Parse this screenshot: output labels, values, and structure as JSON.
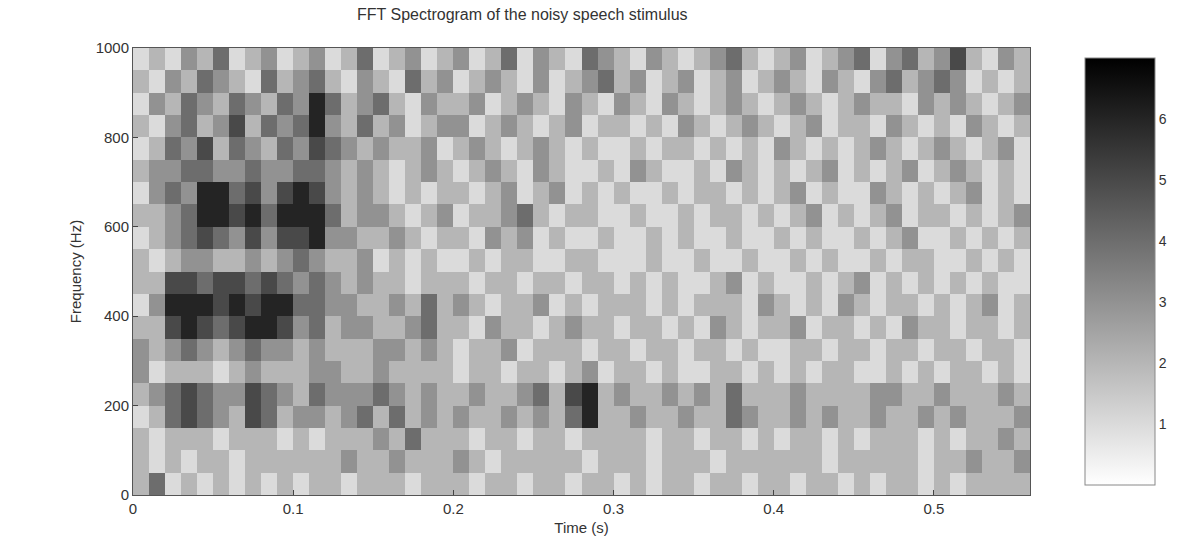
{
  "chart_data": {
    "type": "heatmap",
    "title": "FFT Spectrogram of the noisy speech stimulus",
    "x_label": "Time (s)",
    "y_label": "Frequency (Hz)",
    "x": [
      0.005,
      0.015,
      0.025,
      0.035,
      0.045,
      0.055,
      0.065,
      0.075,
      0.085,
      0.095,
      0.105,
      0.115,
      0.125,
      0.135,
      0.145,
      0.155,
      0.165,
      0.175,
      0.185,
      0.195,
      0.205,
      0.215,
      0.225,
      0.235,
      0.245,
      0.255,
      0.265,
      0.275,
      0.285,
      0.295,
      0.305,
      0.315,
      0.325,
      0.335,
      0.345,
      0.355,
      0.365,
      0.375,
      0.385,
      0.395,
      0.405,
      0.415,
      0.425,
      0.435,
      0.445,
      0.455,
      0.465,
      0.475,
      0.485,
      0.495,
      0.505,
      0.515,
      0.525,
      0.535,
      0.545,
      0.555
    ],
    "y": [
      25,
      75,
      125,
      175,
      225,
      275,
      325,
      375,
      425,
      475,
      525,
      575,
      625,
      675,
      725,
      775,
      825,
      875,
      925,
      975
    ],
    "cells": [
      [
        2,
        4,
        1,
        2,
        1,
        2,
        1,
        2,
        1,
        2,
        1,
        2,
        2,
        1,
        2,
        2,
        2,
        1,
        2,
        2,
        2,
        1,
        2,
        2,
        1,
        2,
        2,
        1,
        2,
        2,
        1,
        2,
        1,
        2,
        2,
        1,
        2,
        2,
        1,
        2,
        2,
        1,
        2,
        2,
        1,
        2,
        1,
        2,
        2,
        1,
        2,
        1,
        2,
        2,
        2,
        2
      ],
      [
        2,
        1,
        2,
        1,
        2,
        2,
        1,
        2,
        2,
        2,
        2,
        2,
        2,
        3,
        2,
        2,
        3,
        2,
        2,
        2,
        3,
        2,
        1,
        2,
        2,
        2,
        2,
        2,
        1,
        2,
        2,
        2,
        1,
        2,
        2,
        2,
        1,
        2,
        2,
        2,
        2,
        2,
        2,
        1,
        2,
        2,
        2,
        2,
        2,
        1,
        2,
        2,
        3,
        2,
        2,
        3
      ],
      [
        2,
        1,
        2,
        2,
        2,
        1,
        2,
        2,
        2,
        1,
        2,
        1,
        2,
        2,
        2,
        3,
        2,
        4,
        2,
        2,
        2,
        1,
        2,
        2,
        1,
        2,
        2,
        1,
        2,
        2,
        2,
        2,
        1,
        2,
        2,
        1,
        2,
        2,
        1,
        2,
        1,
        2,
        2,
        1,
        2,
        1,
        2,
        2,
        2,
        1,
        2,
        1,
        2,
        2,
        3,
        2
      ],
      [
        1,
        2,
        4,
        5,
        4,
        3,
        2,
        5,
        4,
        2,
        3,
        3,
        2,
        3,
        4,
        2,
        4,
        2,
        3,
        2,
        3,
        2,
        2,
        3,
        2,
        3,
        2,
        4,
        6,
        2,
        2,
        3,
        2,
        2,
        3,
        2,
        2,
        4,
        3,
        2,
        2,
        3,
        2,
        3,
        2,
        2,
        3,
        2,
        2,
        3,
        2,
        3,
        2,
        2,
        2,
        3
      ],
      [
        2,
        3,
        4,
        5,
        4,
        3,
        3,
        5,
        4,
        3,
        2,
        4,
        3,
        3,
        3,
        4,
        3,
        2,
        3,
        2,
        2,
        3,
        2,
        2,
        3,
        4,
        2,
        5,
        6,
        2,
        3,
        2,
        2,
        3,
        2,
        3,
        2,
        4,
        2,
        2,
        2,
        3,
        2,
        2,
        2,
        2,
        3,
        3,
        2,
        2,
        3,
        2,
        2,
        2,
        3,
        2
      ],
      [
        3,
        1,
        2,
        2,
        2,
        1,
        2,
        3,
        2,
        2,
        2,
        3,
        3,
        2,
        2,
        3,
        2,
        2,
        2,
        2,
        1,
        2,
        2,
        1,
        2,
        2,
        1,
        2,
        3,
        1,
        2,
        2,
        1,
        2,
        1,
        1,
        2,
        2,
        1,
        2,
        1,
        2,
        1,
        2,
        2,
        1,
        1,
        2,
        1,
        2,
        1,
        2,
        2,
        1,
        2,
        1
      ],
      [
        3,
        2,
        3,
        4,
        3,
        2,
        3,
        4,
        3,
        3,
        2,
        3,
        2,
        2,
        2,
        3,
        3,
        2,
        3,
        2,
        1,
        2,
        2,
        3,
        1,
        2,
        2,
        2,
        1,
        2,
        2,
        1,
        2,
        2,
        1,
        2,
        2,
        1,
        2,
        1,
        1,
        2,
        2,
        1,
        2,
        2,
        1,
        2,
        2,
        1,
        2,
        2,
        1,
        2,
        2,
        1
      ],
      [
        2,
        2,
        5,
        6,
        5,
        4,
        5,
        6,
        6,
        5,
        3,
        4,
        2,
        3,
        3,
        2,
        2,
        3,
        4,
        2,
        2,
        1,
        3,
        2,
        2,
        1,
        2,
        3,
        2,
        2,
        1,
        2,
        2,
        1,
        2,
        1,
        3,
        2,
        1,
        2,
        2,
        3,
        1,
        2,
        2,
        1,
        2,
        1,
        3,
        2,
        2,
        1,
        2,
        2,
        1,
        2
      ],
      [
        1,
        3,
        6,
        6,
        6,
        5,
        6,
        5,
        6,
        6,
        4,
        4,
        3,
        3,
        2,
        2,
        3,
        2,
        4,
        2,
        3,
        2,
        1,
        2,
        2,
        3,
        1,
        2,
        1,
        2,
        2,
        2,
        1,
        2,
        1,
        2,
        2,
        2,
        1,
        3,
        2,
        1,
        2,
        1,
        3,
        2,
        1,
        2,
        2,
        1,
        2,
        1,
        2,
        3,
        1,
        2
      ],
      [
        2,
        2,
        5,
        5,
        4,
        5,
        5,
        4,
        5,
        4,
        3,
        4,
        3,
        2,
        3,
        2,
        2,
        1,
        2,
        2,
        2,
        1,
        2,
        2,
        1,
        2,
        2,
        1,
        2,
        2,
        1,
        2,
        1,
        2,
        1,
        1,
        2,
        3,
        1,
        2,
        1,
        1,
        2,
        1,
        2,
        3,
        1,
        2,
        1,
        2,
        1,
        2,
        1,
        2,
        1,
        1
      ],
      [
        2,
        1,
        2,
        3,
        3,
        2,
        2,
        3,
        2,
        3,
        4,
        3,
        2,
        2,
        3,
        1,
        2,
        1,
        2,
        1,
        1,
        2,
        1,
        2,
        2,
        1,
        1,
        2,
        2,
        1,
        1,
        1,
        2,
        1,
        1,
        2,
        1,
        1,
        2,
        1,
        1,
        2,
        1,
        2,
        1,
        1,
        2,
        1,
        2,
        2,
        1,
        1,
        2,
        1,
        2,
        1
      ],
      [
        1,
        2,
        3,
        4,
        5,
        4,
        3,
        5,
        3,
        5,
        5,
        6,
        3,
        3,
        2,
        2,
        3,
        2,
        1,
        2,
        2,
        1,
        3,
        2,
        3,
        1,
        2,
        1,
        1,
        2,
        1,
        1,
        2,
        1,
        2,
        1,
        1,
        2,
        1,
        1,
        2,
        1,
        2,
        1,
        1,
        2,
        1,
        2,
        3,
        1,
        1,
        2,
        1,
        2,
        1,
        2
      ],
      [
        2,
        2,
        3,
        4,
        6,
        6,
        5,
        6,
        4,
        6,
        6,
        6,
        4,
        2,
        3,
        3,
        2,
        1,
        2,
        3,
        1,
        2,
        2,
        3,
        4,
        2,
        1,
        2,
        2,
        1,
        1,
        2,
        1,
        1,
        2,
        1,
        2,
        2,
        1,
        2,
        1,
        2,
        3,
        1,
        2,
        1,
        2,
        3,
        1,
        2,
        2,
        1,
        2,
        1,
        2,
        3
      ],
      [
        1,
        3,
        4,
        3,
        6,
        6,
        4,
        5,
        3,
        5,
        6,
        5,
        3,
        2,
        3,
        2,
        1,
        2,
        1,
        2,
        2,
        1,
        2,
        3,
        1,
        2,
        3,
        1,
        2,
        1,
        2,
        1,
        1,
        2,
        1,
        2,
        2,
        1,
        2,
        1,
        2,
        3,
        1,
        2,
        1,
        1,
        3,
        2,
        1,
        2,
        1,
        2,
        3,
        1,
        2,
        1
      ],
      [
        2,
        3,
        3,
        4,
        4,
        3,
        3,
        4,
        3,
        3,
        4,
        4,
        3,
        2,
        3,
        2,
        1,
        2,
        3,
        2,
        1,
        2,
        3,
        2,
        1,
        3,
        2,
        1,
        1,
        2,
        1,
        3,
        2,
        1,
        1,
        2,
        1,
        3,
        2,
        1,
        2,
        1,
        2,
        3,
        1,
        2,
        1,
        2,
        3,
        1,
        2,
        3,
        2,
        1,
        2,
        1
      ],
      [
        1,
        2,
        4,
        3,
        5,
        2,
        4,
        3,
        2,
        4,
        3,
        5,
        4,
        3,
        2,
        3,
        2,
        2,
        3,
        1,
        2,
        3,
        2,
        1,
        2,
        3,
        2,
        1,
        2,
        1,
        1,
        2,
        1,
        2,
        2,
        1,
        2,
        1,
        2,
        1,
        3,
        2,
        1,
        2,
        1,
        2,
        3,
        2,
        1,
        2,
        3,
        2,
        1,
        2,
        3,
        1
      ],
      [
        2,
        1,
        3,
        4,
        2,
        3,
        5,
        2,
        4,
        3,
        4,
        6,
        3,
        2,
        4,
        2,
        3,
        1,
        2,
        3,
        3,
        1,
        2,
        3,
        2,
        1,
        2,
        3,
        1,
        2,
        2,
        1,
        2,
        1,
        3,
        2,
        1,
        2,
        3,
        2,
        1,
        2,
        3,
        1,
        2,
        2,
        1,
        3,
        2,
        1,
        2,
        1,
        3,
        2,
        1,
        2
      ],
      [
        1,
        3,
        2,
        4,
        3,
        2,
        4,
        3,
        2,
        4,
        3,
        6,
        4,
        2,
        3,
        4,
        2,
        1,
        3,
        2,
        2,
        3,
        1,
        2,
        3,
        2,
        1,
        3,
        2,
        1,
        3,
        2,
        1,
        3,
        2,
        1,
        2,
        3,
        2,
        1,
        2,
        3,
        2,
        1,
        2,
        3,
        2,
        2,
        1,
        3,
        2,
        3,
        2,
        1,
        2,
        3
      ],
      [
        2,
        1,
        3,
        2,
        4,
        3,
        2,
        1,
        4,
        2,
        3,
        4,
        2,
        1,
        3,
        2,
        1,
        4,
        2,
        3,
        1,
        2,
        3,
        2,
        1,
        3,
        1,
        2,
        3,
        4,
        2,
        3,
        1,
        2,
        3,
        1,
        2,
        3,
        1,
        2,
        3,
        2,
        1,
        3,
        2,
        1,
        3,
        4,
        2,
        3,
        4,
        3,
        1,
        2,
        1,
        2
      ],
      [
        1,
        2,
        1,
        3,
        2,
        4,
        1,
        2,
        3,
        1,
        2,
        3,
        1,
        2,
        4,
        1,
        2,
        3,
        1,
        2,
        3,
        1,
        2,
        4,
        1,
        3,
        2,
        1,
        4,
        3,
        2,
        1,
        3,
        2,
        1,
        2,
        3,
        4,
        2,
        1,
        2,
        3,
        1,
        2,
        3,
        4,
        1,
        3,
        4,
        2,
        3,
        5,
        2,
        1,
        3,
        2
      ]
    ],
    "xlim": [
      0,
      0.56
    ],
    "xticks": [
      0,
      0.1,
      0.2,
      0.3,
      0.4,
      0.5
    ],
    "ylim": [
      0,
      1000
    ],
    "yticks": [
      0,
      200,
      400,
      600,
      800,
      1000
    ],
    "color_range": [
      0,
      7
    ],
    "color_ticks": [
      1,
      2,
      3,
      4,
      5,
      6
    ]
  }
}
